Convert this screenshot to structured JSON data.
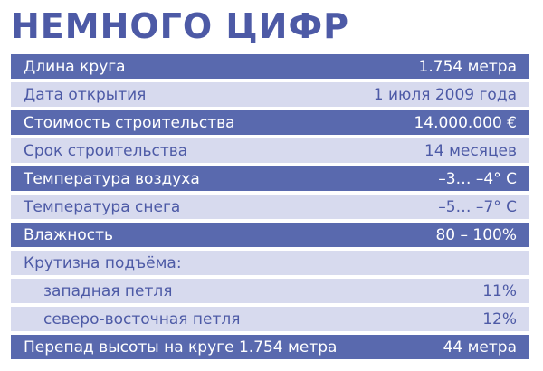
{
  "title": "НЕМНОГО ЦИФР",
  "rows": [
    {
      "label": "Длина круга",
      "value": "1.754 метра"
    },
    {
      "label": "Дата открытия",
      "value": "1 июля 2009 года"
    },
    {
      "label": "Стоимость строительства",
      "value": "14.000.000 €"
    },
    {
      "label": "Срок строительства",
      "value": "14 месяцев"
    },
    {
      "label": "Температура воздуха",
      "value": "–3… –4° C"
    },
    {
      "label": "Температура снега",
      "value": "–5… –7° C"
    },
    {
      "label": "Влажность",
      "value": "80 – 100%"
    },
    {
      "label": "Крутизна подъёма:",
      "value": ""
    },
    {
      "label": "западная петля",
      "value": "11%"
    },
    {
      "label": "северо-восточная петля",
      "value": "12%"
    },
    {
      "label": "Перепад высоты на круге 1.754  метра",
      "value": "44 метра"
    }
  ],
  "colors": {
    "dark_row": "#5969ae",
    "light_row": "#d7daee",
    "title": "#4d5aa6"
  }
}
